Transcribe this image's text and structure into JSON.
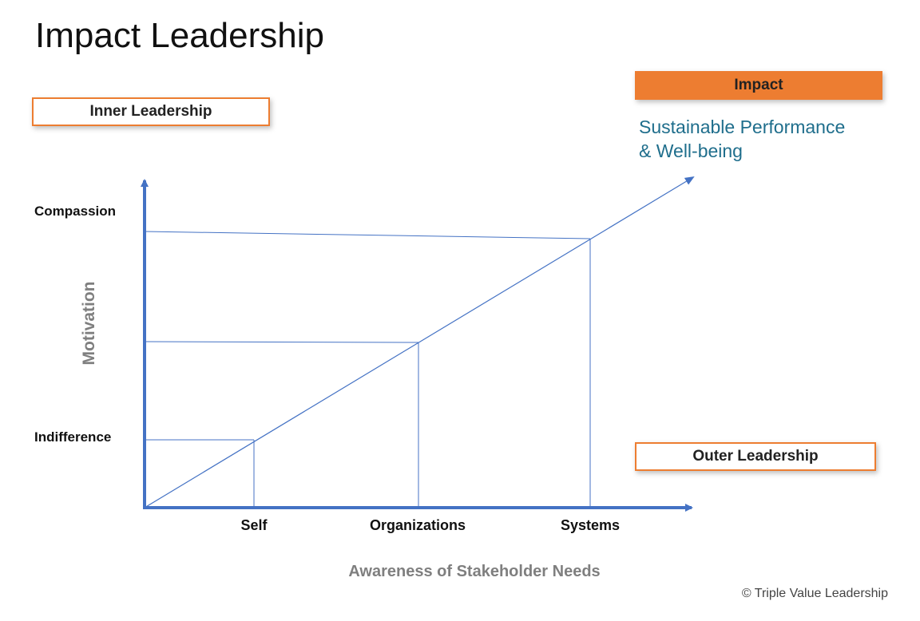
{
  "title": "Impact Leadership",
  "inner_leadership_label": "Inner Leadership",
  "impact_label": "Impact",
  "impact_subtitle_line1": "Sustainable Performance",
  "impact_subtitle_line2": "& Well-being",
  "outer_leadership_label": "Outer Leadership",
  "y_axis": {
    "label": "Motivation",
    "top_label": "Compassion",
    "bottom_label": "Indifference"
  },
  "x_axis": {
    "label": "Awareness of Stakeholder Needs",
    "ticks": [
      "Self",
      "Organizations",
      "Systems"
    ]
  },
  "copyright": "© Triple Value Leadership",
  "colors": {
    "accent_orange": "#ed7d31",
    "axis_blue": "#4472c4",
    "subtitle_teal": "#1f6e8c",
    "axis_label_gray": "#7f7f7f"
  }
}
